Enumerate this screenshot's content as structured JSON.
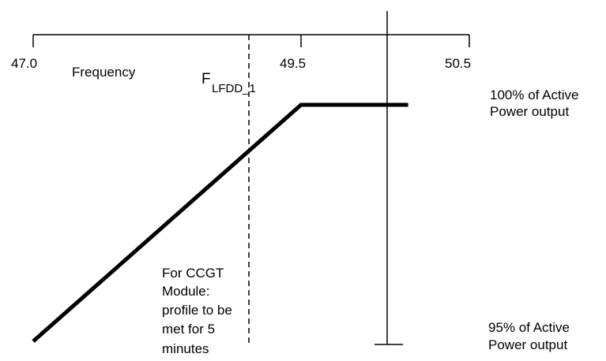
{
  "axis": {
    "name_label": "Frequency",
    "ticks": [
      {
        "label": "47.0",
        "value": 47.0
      },
      {
        "label": "49.5",
        "value": 49.5
      },
      {
        "label": "50.5",
        "value": 50.5
      }
    ],
    "flfdd_marker": {
      "main": "F",
      "subscript": "LFDD_1"
    }
  },
  "profile": {
    "points": [
      {
        "frequency": 47.0,
        "power_percent": 95
      },
      {
        "frequency": 49.5,
        "power_percent": 100
      },
      {
        "frequency": 50.5,
        "power_percent": 100
      }
    ]
  },
  "power_labels": {
    "upper": [
      "100% of Active",
      "Power output"
    ],
    "lower": [
      "95% of Active",
      "Power output"
    ]
  },
  "annotation": {
    "lines": [
      "For CCGT",
      "Module:",
      "profile to be",
      "met for 5",
      "minutes"
    ]
  },
  "colors": {
    "line": "#000000",
    "background": "#ffffff"
  }
}
